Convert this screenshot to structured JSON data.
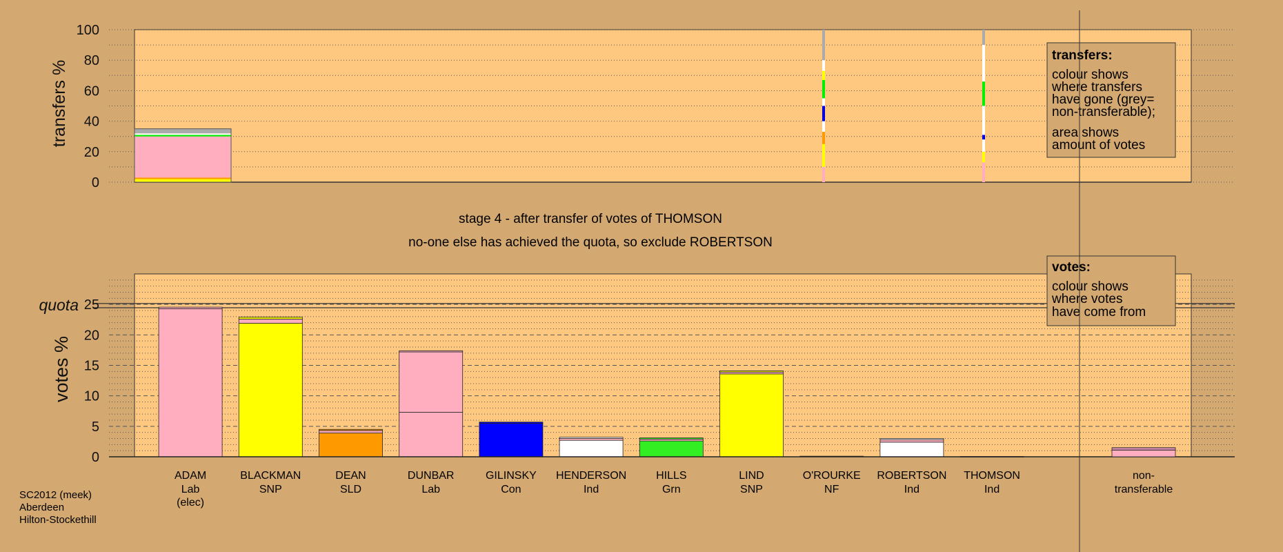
{
  "chart_data": [
    {
      "type": "bar",
      "name": "transfers",
      "ylabel": "transfers %",
      "ylim": [
        0,
        100
      ],
      "yticks": [
        0,
        20,
        40,
        60,
        80,
        100
      ],
      "grid": true,
      "legend": {
        "title": "transfers:",
        "lines": [
          "colour shows",
          "where transfers",
          "have gone (grey=",
          "non-transferable);",
          "area shows",
          "amount of votes"
        ]
      },
      "main_block": {
        "candidate": "ADAM",
        "total": 35,
        "segments": [
          {
            "from": 0,
            "to": 2,
            "color": "#ffff00"
          },
          {
            "from": 2,
            "to": 3,
            "color": "#ff9900"
          },
          {
            "from": 3,
            "to": 30,
            "color": "#ffaec0"
          },
          {
            "from": 30,
            "to": 31,
            "color": "#00ee00"
          },
          {
            "from": 31,
            "to": 32,
            "color": "#ffffff"
          },
          {
            "from": 32,
            "to": 35,
            "color": "#aaaaaa"
          }
        ]
      },
      "strips": [
        {
          "candidate": "O'ROURKE",
          "segments": [
            {
              "from": 0,
              "to": 10,
              "color": "#ffaec0"
            },
            {
              "from": 10,
              "to": 25,
              "color": "#ffff00"
            },
            {
              "from": 25,
              "to": 33,
              "color": "#ff9900"
            },
            {
              "from": 33,
              "to": 40,
              "color": "#ffffff"
            },
            {
              "from": 40,
              "to": 50,
              "color": "#0000dd"
            },
            {
              "from": 50,
              "to": 55,
              "color": "#ffffff"
            },
            {
              "from": 55,
              "to": 67,
              "color": "#00ee00"
            },
            {
              "from": 67,
              "to": 73,
              "color": "#ffff00"
            },
            {
              "from": 73,
              "to": 80,
              "color": "#ffffff"
            },
            {
              "from": 80,
              "to": 100,
              "color": "#aaaaaa"
            }
          ]
        },
        {
          "candidate": "THOMSON",
          "segments": [
            {
              "from": 0,
              "to": 13,
              "color": "#ffaec0"
            },
            {
              "from": 13,
              "to": 20,
              "color": "#ffff00"
            },
            {
              "from": 20,
              "to": 28,
              "color": "#ffffff"
            },
            {
              "from": 28,
              "to": 31,
              "color": "#0000dd"
            },
            {
              "from": 31,
              "to": 50,
              "color": "#ffffff"
            },
            {
              "from": 50,
              "to": 66,
              "color": "#00ee00"
            },
            {
              "from": 66,
              "to": 90,
              "color": "#ffffff"
            },
            {
              "from": 90,
              "to": 100,
              "color": "#aaaaaa"
            }
          ]
        }
      ]
    },
    {
      "type": "bar",
      "name": "votes",
      "ylabel": "votes %",
      "ylim": [
        0,
        30
      ],
      "yticks": [
        0,
        5,
        10,
        15,
        20,
        25
      ],
      "quota": 24.8,
      "quota_label": "quota",
      "grid": true,
      "legend": {
        "title": "votes:",
        "lines": [
          "colour shows",
          "where votes",
          "have come from"
        ]
      },
      "categories": [
        {
          "name": "ADAM",
          "party": "Lab",
          "extra": "(elec)"
        },
        {
          "name": "BLACKMAN",
          "party": "SNP",
          "extra": ""
        },
        {
          "name": "DEAN",
          "party": "SLD",
          "extra": ""
        },
        {
          "name": "DUNBAR",
          "party": "Lab",
          "extra": ""
        },
        {
          "name": "GILINSKY",
          "party": "Con",
          "extra": ""
        },
        {
          "name": "HENDERSON",
          "party": "Ind",
          "extra": ""
        },
        {
          "name": "HILLS",
          "party": "Grn",
          "extra": ""
        },
        {
          "name": "LIND",
          "party": "SNP",
          "extra": ""
        },
        {
          "name": "O'ROURKE",
          "party": "NF",
          "extra": ""
        },
        {
          "name": "ROBERTSON",
          "party": "Ind",
          "extra": ""
        },
        {
          "name": "THOMSON",
          "party": "Ind",
          "extra": ""
        }
      ],
      "bars": [
        {
          "candidate": "ADAM",
          "color": "#ffaec0",
          "segments": [
            {
              "value": 24.3,
              "color": "#ffaec0"
            },
            {
              "value": 0.25,
              "color": "#ffaec0"
            }
          ]
        },
        {
          "candidate": "BLACKMAN",
          "color": "#ffff00",
          "segments": [
            {
              "value": 21.9,
              "color": "#ffff00"
            },
            {
              "value": 0.7,
              "color": "#ffaec0"
            },
            {
              "value": 0.3,
              "color": "#ffff00"
            }
          ]
        },
        {
          "candidate": "DEAN",
          "color": "#ff9900",
          "segments": [
            {
              "value": 3.9,
              "color": "#ff9900"
            },
            {
              "value": 0.4,
              "color": "#ffaec0"
            },
            {
              "value": 0.2,
              "color": "#ff9900"
            }
          ]
        },
        {
          "candidate": "DUNBAR",
          "color": "#ffaec0",
          "segments": [
            {
              "value": 7.3,
              "color": "#ffaec0"
            },
            {
              "value": 9.9,
              "color": "#ffaec0"
            },
            {
              "value": 0.2,
              "color": "#ffaec0"
            }
          ]
        },
        {
          "candidate": "GILINSKY",
          "color": "#0000ff",
          "segments": [
            {
              "value": 5.5,
              "color": "#0000ff"
            },
            {
              "value": 0.2,
              "color": "#0000ff"
            }
          ]
        },
        {
          "candidate": "HENDERSON",
          "color": "#ffffff",
          "segments": [
            {
              "value": 2.7,
              "color": "#ffffff"
            },
            {
              "value": 0.3,
              "color": "#ffaec0"
            },
            {
              "value": 0.2,
              "color": "#ffffff"
            }
          ]
        },
        {
          "candidate": "HILLS",
          "color": "#33ee22",
          "segments": [
            {
              "value": 2.6,
              "color": "#33ee22"
            },
            {
              "value": 0.3,
              "color": "#ffaec0"
            },
            {
              "value": 0.2,
              "color": "#33ee22"
            }
          ]
        },
        {
          "candidate": "LIND",
          "color": "#ffff00",
          "segments": [
            {
              "value": 13.6,
              "color": "#ffff00"
            },
            {
              "value": 0.3,
              "color": "#ffaec0"
            },
            {
              "value": 0.2,
              "color": "#ffff00"
            }
          ]
        },
        {
          "candidate": "O'ROURKE",
          "color": "#ffffff",
          "segments": [
            {
              "value": 0.1,
              "color": "#ffffff"
            }
          ]
        },
        {
          "candidate": "ROBERTSON",
          "color": "#ffffff",
          "segments": [
            {
              "value": 2.4,
              "color": "#ffffff"
            },
            {
              "value": 0.4,
              "color": "#ffaec0"
            },
            {
              "value": 0.2,
              "color": "#ffffff"
            }
          ]
        },
        {
          "candidate": "THOMSON",
          "color": "#ffffff",
          "segments": [
            {
              "value": 0.05,
              "color": "#ffffff"
            }
          ]
        }
      ],
      "nontransferable": {
        "label_lines": [
          "non-",
          "transferable"
        ],
        "segments": [
          {
            "value": 1.1,
            "color": "#ffaec0"
          },
          {
            "value": 0.4,
            "color": "#cc88aa"
          }
        ]
      }
    }
  ],
  "title_lines": [
    "stage 4 - after transfer of votes of THOMSON",
    "no-one else has achieved the quota, so exclude ROBERTSON"
  ],
  "footer": [
    "SC2012 (meek)",
    "Aberdeen",
    "Hilton-Stockethill"
  ],
  "colors": {
    "background": "#d4a971",
    "plot_area": "#ffc880",
    "grid": "#555555",
    "legend_bg": "#d4a971"
  }
}
